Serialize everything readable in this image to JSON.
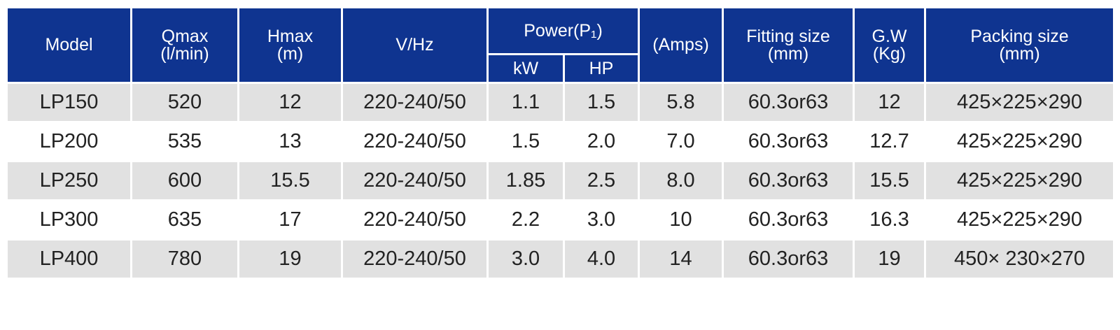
{
  "table": {
    "header": {
      "top": [
        "Model",
        "Qmax\n(l/min)",
        "Hmax\n(m)",
        "V/Hz",
        "Power(P₁)",
        "(Amps)",
        "Fitting size\n(mm)",
        "G.W\n(Kg)",
        "Packing size\n(mm)"
      ],
      "sub": [
        "kW",
        "HP"
      ]
    },
    "rows": [
      [
        "LP150",
        "520",
        "12",
        "220-240/50",
        "1.1",
        "1.5",
        "5.8",
        "60.3or63",
        "12",
        "425×225×290"
      ],
      [
        "LP200",
        "535",
        "13",
        "220-240/50",
        "1.5",
        "2.0",
        "7.0",
        "60.3or63",
        "12.7",
        "425×225×290"
      ],
      [
        "LP250",
        "600",
        "15.5",
        "220-240/50",
        "1.85",
        "2.5",
        "8.0",
        "60.3or63",
        "15.5",
        "425×225×290"
      ],
      [
        "LP300",
        "635",
        "17",
        "220-240/50",
        "2.2",
        "3.0",
        "10",
        "60.3or63",
        "16.3",
        "425×225×290"
      ],
      [
        "LP400",
        "780",
        "19",
        "220-240/50",
        "3.0",
        "4.0",
        "14",
        "60.3or63",
        "19",
        "450× 230×270"
      ]
    ]
  }
}
